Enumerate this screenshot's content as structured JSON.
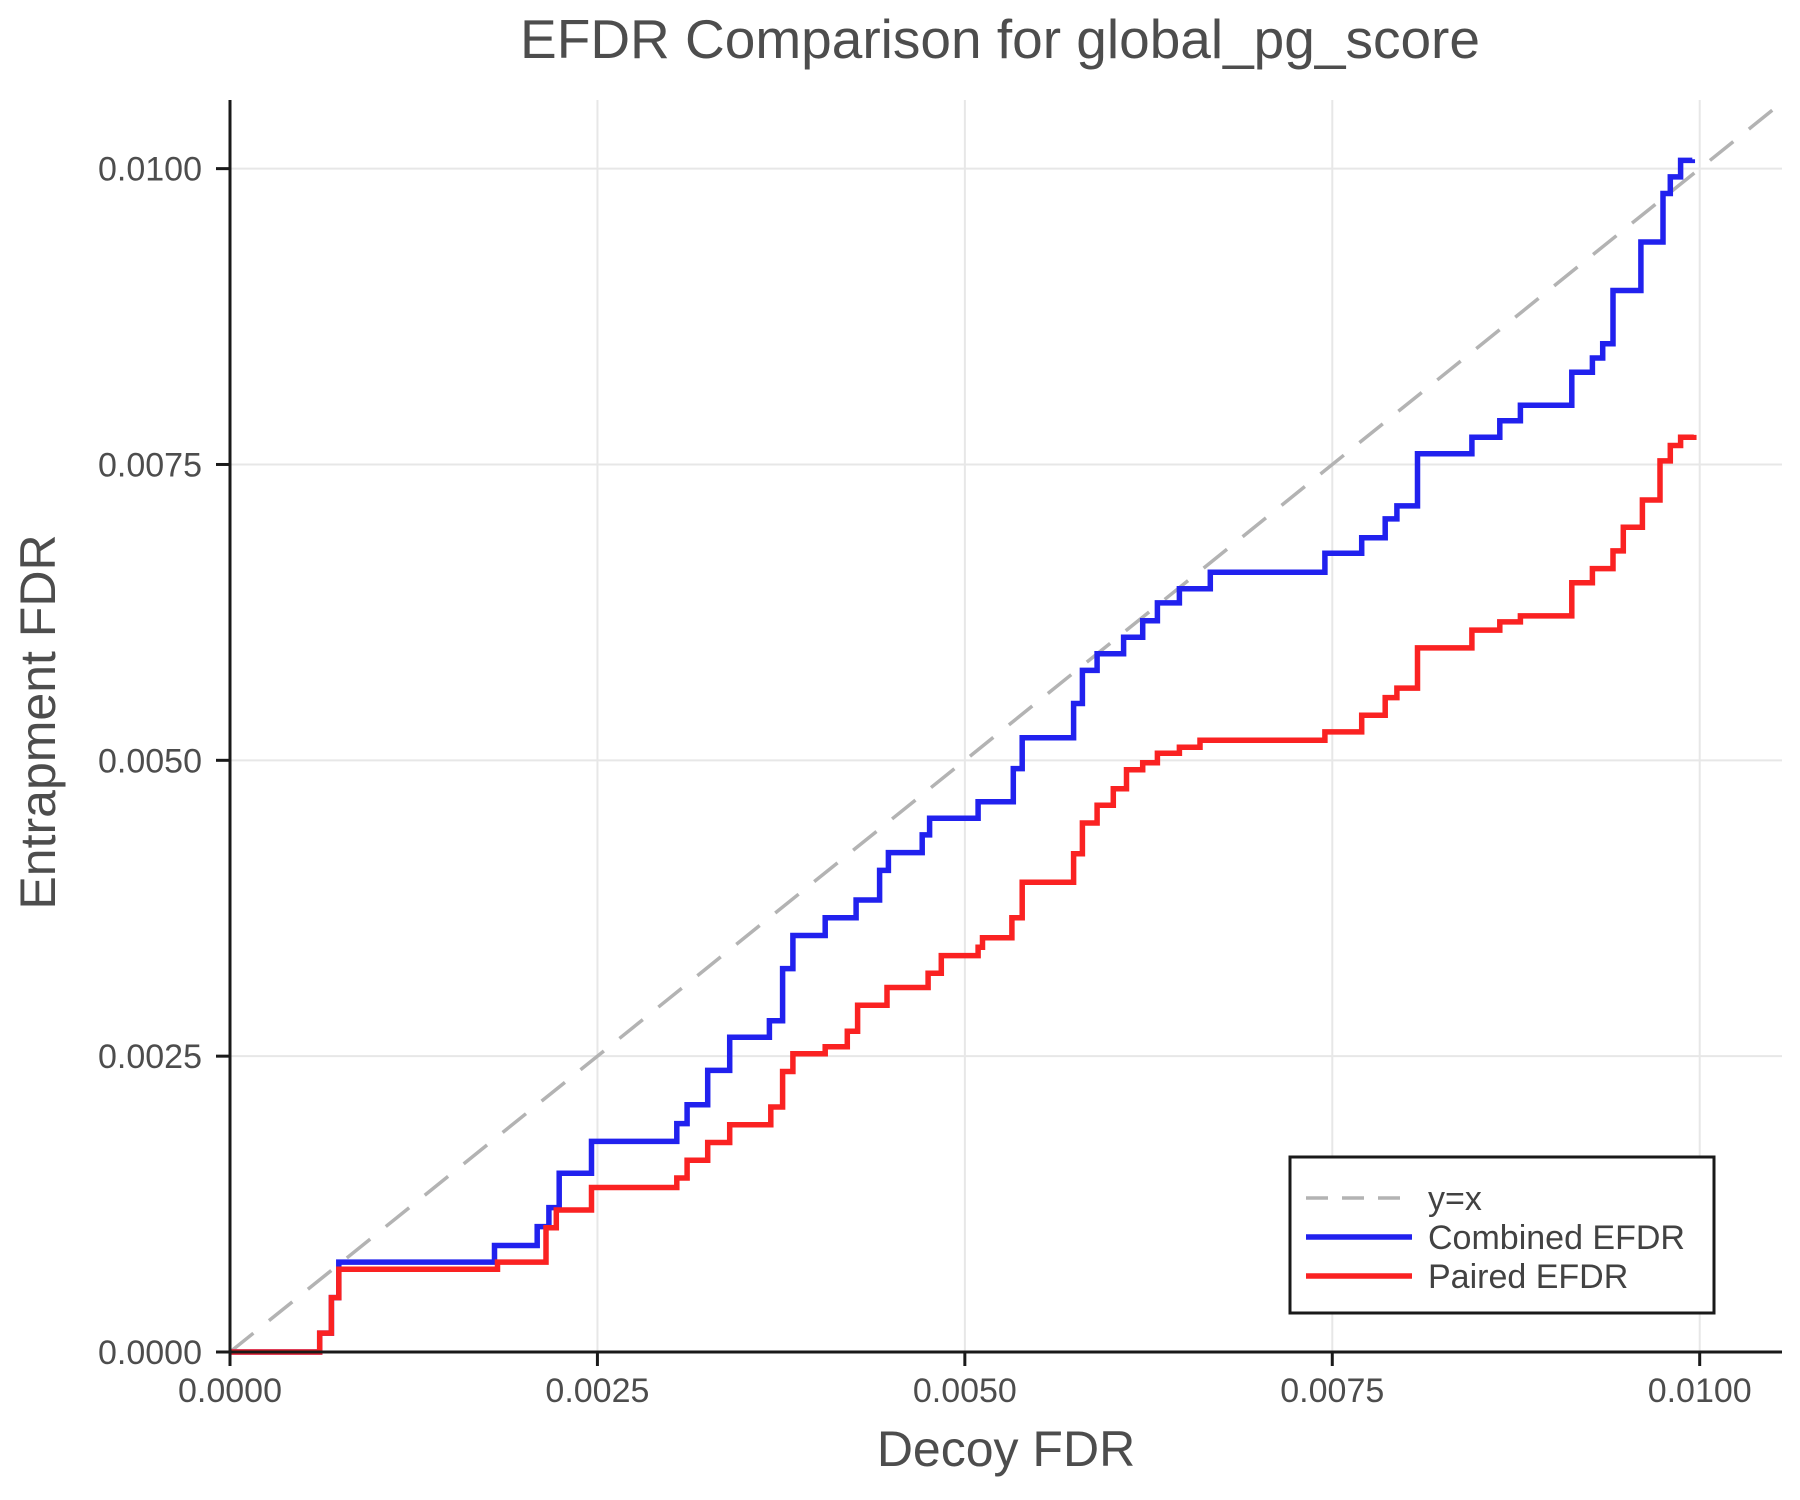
{
  "chart_data": {
    "type": "line",
    "title": "EFDR Comparison for global_pg_score",
    "xlabel": "Decoy FDR",
    "ylabel": "Entrapment FDR",
    "xlim": [
      0,
      0.01056
    ],
    "ylim": [
      0,
      0.01058
    ],
    "grid": true,
    "legend_position": "lower right",
    "xtick_values": [
      0.0,
      0.0025,
      0.005,
      0.0075,
      0.01
    ],
    "xtick_labels": [
      "0.0000",
      "0.0025",
      "0.0050",
      "0.0075",
      "0.0100"
    ],
    "ytick_values": [
      0.0,
      0.0025,
      0.005,
      0.0075,
      0.01
    ],
    "ytick_labels": [
      "0.0000",
      "0.0025",
      "0.0050",
      "0.0075",
      "0.0100"
    ],
    "colors": {
      "grid": "#e7e7e7",
      "spine": "#1a1a1a",
      "text": "#4d4d4d",
      "background": "#ffffff"
    },
    "series": [
      {
        "name": "y=x",
        "slug": "y-equals-x-line",
        "color": "#b3b3b3",
        "dashed": true,
        "step": false,
        "width": 3.5,
        "points": [
          [
            0,
            0
          ],
          [
            0.01056,
            0.01056
          ]
        ]
      },
      {
        "name": "Combined EFDR",
        "slug": "combined-efdr-line",
        "color": "#2121ee",
        "dashed": false,
        "step": true,
        "width": 5.5,
        "points": [
          [
            0.0,
            0.0
          ],
          [
            0.00061,
            0.00016
          ],
          [
            0.00069,
            0.00046
          ],
          [
            0.00074,
            0.00076
          ],
          [
            0.0018,
            0.0009
          ],
          [
            0.00209,
            0.00106
          ],
          [
            0.00217,
            0.00122
          ],
          [
            0.00224,
            0.00151
          ],
          [
            0.00246,
            0.00178
          ],
          [
            0.00304,
            0.00193
          ],
          [
            0.00311,
            0.00209
          ],
          [
            0.00325,
            0.00238
          ],
          [
            0.0034,
            0.00266
          ],
          [
            0.00367,
            0.0028
          ],
          [
            0.00376,
            0.00324
          ],
          [
            0.00383,
            0.00352
          ],
          [
            0.00405,
            0.00367
          ],
          [
            0.00426,
            0.00382
          ],
          [
            0.00442,
            0.00407
          ],
          [
            0.00448,
            0.00422
          ],
          [
            0.00471,
            0.00437
          ],
          [
            0.00476,
            0.00451
          ],
          [
            0.00509,
            0.00465
          ],
          [
            0.00533,
            0.00493
          ],
          [
            0.00539,
            0.00519
          ],
          [
            0.00574,
            0.00548
          ],
          [
            0.0058,
            0.00576
          ],
          [
            0.0059,
            0.0059
          ],
          [
            0.00608,
            0.00604
          ],
          [
            0.00621,
            0.00618
          ],
          [
            0.00631,
            0.00633
          ],
          [
            0.00646,
            0.00645
          ],
          [
            0.00667,
            0.00659
          ],
          [
            0.00745,
            0.00675
          ],
          [
            0.0077,
            0.00688
          ],
          [
            0.00786,
            0.00704
          ],
          [
            0.00794,
            0.00715
          ],
          [
            0.00808,
            0.00759
          ],
          [
            0.00845,
            0.00773
          ],
          [
            0.00864,
            0.00787
          ],
          [
            0.00878,
            0.008
          ],
          [
            0.00913,
            0.00828
          ],
          [
            0.00927,
            0.0084
          ],
          [
            0.00934,
            0.00852
          ],
          [
            0.00941,
            0.00897
          ],
          [
            0.0096,
            0.00938
          ],
          [
            0.00975,
            0.00979
          ],
          [
            0.0098,
            0.00993
          ],
          [
            0.00987,
            0.01007
          ],
          [
            0.00995,
            0.01008
          ]
        ]
      },
      {
        "name": "Paired EFDR",
        "slug": "paired-efdr-line",
        "color": "#fa2222",
        "dashed": false,
        "step": true,
        "width": 5.5,
        "points": [
          [
            0.0,
            0.0
          ],
          [
            0.00061,
            0.00016
          ],
          [
            0.00069,
            0.00046
          ],
          [
            0.00074,
            0.0007
          ],
          [
            0.00182,
            0.00076
          ],
          [
            0.00215,
            0.00105
          ],
          [
            0.00222,
            0.0012
          ],
          [
            0.00246,
            0.00139
          ],
          [
            0.00304,
            0.00147
          ],
          [
            0.00311,
            0.00162
          ],
          [
            0.00325,
            0.00177
          ],
          [
            0.0034,
            0.00192
          ],
          [
            0.00368,
            0.00207
          ],
          [
            0.00376,
            0.00237
          ],
          [
            0.00383,
            0.00252
          ],
          [
            0.00405,
            0.00258
          ],
          [
            0.0042,
            0.00271
          ],
          [
            0.00427,
            0.00293
          ],
          [
            0.00447,
            0.00308
          ],
          [
            0.00475,
            0.0032
          ],
          [
            0.00484,
            0.00335
          ],
          [
            0.00509,
            0.00342
          ],
          [
            0.00512,
            0.0035
          ],
          [
            0.00532,
            0.00367
          ],
          [
            0.00539,
            0.00397
          ],
          [
            0.00574,
            0.00421
          ],
          [
            0.0058,
            0.00447
          ],
          [
            0.0059,
            0.00462
          ],
          [
            0.00601,
            0.00476
          ],
          [
            0.0061,
            0.00492
          ],
          [
            0.00621,
            0.00498
          ],
          [
            0.00631,
            0.00506
          ],
          [
            0.00646,
            0.00511
          ],
          [
            0.0066,
            0.00517
          ],
          [
            0.00745,
            0.00524
          ],
          [
            0.0077,
            0.00538
          ],
          [
            0.00786,
            0.00553
          ],
          [
            0.00794,
            0.00561
          ],
          [
            0.00808,
            0.00595
          ],
          [
            0.00845,
            0.0061
          ],
          [
            0.00864,
            0.00617
          ],
          [
            0.00878,
            0.00622
          ],
          [
            0.00913,
            0.0065
          ],
          [
            0.00927,
            0.00662
          ],
          [
            0.00941,
            0.00677
          ],
          [
            0.00948,
            0.00697
          ],
          [
            0.00961,
            0.0072
          ],
          [
            0.00973,
            0.00753
          ],
          [
            0.0098,
            0.00766
          ],
          [
            0.00987,
            0.00773
          ],
          [
            0.00996,
            0.00775
          ]
        ]
      }
    ]
  }
}
